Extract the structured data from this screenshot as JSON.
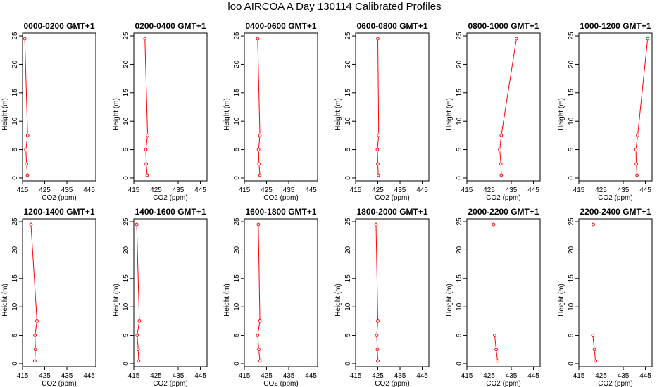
{
  "title": "loo AIRCOA A  Day 130114  Calibrated Profiles",
  "colors": {
    "line": "#ff0000",
    "axis": "#000000",
    "background": "#ffffff"
  },
  "chart_data": [
    {
      "type": "line",
      "title": "0000-0200 GMT+1",
      "xlabel": "CO2 (ppm)",
      "ylabel": "Height (m)",
      "xlim": [
        415,
        448
      ],
      "ylim": [
        -0.5,
        25.5
      ],
      "xticks": [
        415,
        425,
        435,
        445
      ],
      "yticks": [
        0,
        5,
        10,
        15,
        20,
        25
      ],
      "grid": false,
      "points": [
        {
          "x": 417.2,
          "y": 0.5
        },
        {
          "x": 416.8,
          "y": 2.5
        },
        {
          "x": 416.5,
          "y": 5
        },
        {
          "x": 417.3,
          "y": 7.5
        },
        {
          "x": 416.0,
          "y": 24.5
        }
      ],
      "segments": [
        [
          0,
          1
        ],
        [
          1,
          2
        ],
        [
          2,
          3
        ],
        [
          3,
          4
        ]
      ]
    },
    {
      "type": "line",
      "title": "0200-0400 GMT+1",
      "xlabel": "CO2 (ppm)",
      "ylabel": "Height (m)",
      "xlim": [
        415,
        448
      ],
      "ylim": [
        -0.5,
        25.5
      ],
      "xticks": [
        415,
        425,
        435,
        445
      ],
      "yticks": [
        0,
        5,
        10,
        15,
        20,
        25
      ],
      "grid": false,
      "points": [
        {
          "x": 421.0,
          "y": 0.5
        },
        {
          "x": 420.6,
          "y": 2.5
        },
        {
          "x": 420.4,
          "y": 5
        },
        {
          "x": 421.2,
          "y": 7.5
        },
        {
          "x": 420.0,
          "y": 24.5
        }
      ],
      "segments": [
        [
          0,
          1
        ],
        [
          1,
          2
        ],
        [
          2,
          3
        ],
        [
          3,
          4
        ]
      ]
    },
    {
      "type": "line",
      "title": "0400-0600 GMT+1",
      "xlabel": "CO2 (ppm)",
      "ylabel": "Height (m)",
      "xlim": [
        415,
        448
      ],
      "ylim": [
        -0.5,
        25.5
      ],
      "xticks": [
        415,
        425,
        435,
        445
      ],
      "yticks": [
        0,
        5,
        10,
        15,
        20,
        25
      ],
      "grid": false,
      "points": [
        {
          "x": 422.0,
          "y": 0.5
        },
        {
          "x": 421.6,
          "y": 2.5
        },
        {
          "x": 421.4,
          "y": 5
        },
        {
          "x": 422.0,
          "y": 7.5
        },
        {
          "x": 421.0,
          "y": 24.5
        }
      ],
      "segments": [
        [
          0,
          1
        ],
        [
          1,
          2
        ],
        [
          2,
          3
        ],
        [
          3,
          4
        ]
      ]
    },
    {
      "type": "line",
      "title": "0600-0800 GMT+1",
      "xlabel": "CO2 (ppm)",
      "ylabel": "Height (m)",
      "xlim": [
        415,
        448
      ],
      "ylim": [
        -0.5,
        25.5
      ],
      "xticks": [
        415,
        425,
        435,
        445
      ],
      "yticks": [
        0,
        5,
        10,
        15,
        20,
        25
      ],
      "grid": false,
      "points": [
        {
          "x": 425.2,
          "y": 0.5
        },
        {
          "x": 425.0,
          "y": 2.5
        },
        {
          "x": 424.8,
          "y": 5
        },
        {
          "x": 425.4,
          "y": 7.5
        },
        {
          "x": 425.0,
          "y": 24.5
        }
      ],
      "segments": [
        [
          0,
          1
        ],
        [
          1,
          2
        ],
        [
          2,
          3
        ],
        [
          3,
          4
        ]
      ]
    },
    {
      "type": "line",
      "title": "0800-1000 GMT+1",
      "xlabel": "CO2 (ppm)",
      "ylabel": "Height (m)",
      "xlim": [
        415,
        448
      ],
      "ylim": [
        -0.5,
        25.5
      ],
      "xticks": [
        415,
        425,
        435,
        445
      ],
      "yticks": [
        0,
        5,
        10,
        15,
        20,
        25
      ],
      "grid": false,
      "points": [
        {
          "x": 430.5,
          "y": 0.5
        },
        {
          "x": 430.3,
          "y": 2.5
        },
        {
          "x": 429.8,
          "y": 5
        },
        {
          "x": 430.5,
          "y": 7.5
        },
        {
          "x": 437.3,
          "y": 24.5
        }
      ],
      "segments": [
        [
          0,
          1
        ],
        [
          1,
          2
        ],
        [
          2,
          3
        ],
        [
          3,
          4
        ]
      ]
    },
    {
      "type": "line",
      "title": "1000-1200 GMT+1",
      "xlabel": "CO2 (ppm)",
      "ylabel": "Height (m)",
      "xlim": [
        415,
        448
      ],
      "ylim": [
        -0.5,
        25.5
      ],
      "xticks": [
        415,
        425,
        435,
        445
      ],
      "yticks": [
        0,
        5,
        10,
        15,
        20,
        25
      ],
      "grid": false,
      "points": [
        {
          "x": 441.2,
          "y": 0.5
        },
        {
          "x": 440.9,
          "y": 2.5
        },
        {
          "x": 440.7,
          "y": 5
        },
        {
          "x": 441.5,
          "y": 7.5
        },
        {
          "x": 446.0,
          "y": 24.5
        }
      ],
      "segments": [
        [
          0,
          1
        ],
        [
          1,
          2
        ],
        [
          2,
          3
        ],
        [
          3,
          4
        ]
      ]
    },
    {
      "type": "line",
      "title": "1200-1400 GMT+1",
      "xlabel": "CO2 (ppm)",
      "ylabel": "Height (m)",
      "xlim": [
        415,
        448
      ],
      "ylim": [
        -0.5,
        25.5
      ],
      "xticks": [
        415,
        425,
        435,
        445
      ],
      "yticks": [
        0,
        5,
        10,
        15,
        20,
        25
      ],
      "grid": false,
      "points": [
        {
          "x": 420.5,
          "y": 0.5
        },
        {
          "x": 420.8,
          "y": 2.5
        },
        {
          "x": 420.6,
          "y": 5
        },
        {
          "x": 421.5,
          "y": 7.5
        },
        {
          "x": 418.8,
          "y": 24.5
        }
      ],
      "segments": [
        [
          0,
          1
        ],
        [
          1,
          2
        ],
        [
          2,
          3
        ],
        [
          3,
          4
        ]
      ]
    },
    {
      "type": "line",
      "title": "1400-1600 GMT+1",
      "xlabel": "CO2 (ppm)",
      "ylabel": "Height (m)",
      "xlim": [
        415,
        448
      ],
      "ylim": [
        -0.5,
        25.5
      ],
      "xticks": [
        415,
        425,
        435,
        445
      ],
      "yticks": [
        0,
        5,
        10,
        15,
        20,
        25
      ],
      "grid": false,
      "points": [
        {
          "x": 417.2,
          "y": 0.5
        },
        {
          "x": 417.0,
          "y": 2.5
        },
        {
          "x": 416.5,
          "y": 5
        },
        {
          "x": 417.5,
          "y": 7.5
        },
        {
          "x": 416.3,
          "y": 24.5
        }
      ],
      "segments": [
        [
          0,
          1
        ],
        [
          1,
          2
        ],
        [
          2,
          3
        ],
        [
          3,
          4
        ]
      ]
    },
    {
      "type": "line",
      "title": "1600-1800 GMT+1",
      "xlabel": "CO2 (ppm)",
      "ylabel": "Height (m)",
      "xlim": [
        415,
        448
      ],
      "ylim": [
        -0.5,
        25.5
      ],
      "xticks": [
        415,
        425,
        435,
        445
      ],
      "yticks": [
        0,
        5,
        10,
        15,
        20,
        25
      ],
      "grid": false,
      "points": [
        {
          "x": 422.0,
          "y": 0.5
        },
        {
          "x": 421.5,
          "y": 2.5
        },
        {
          "x": 421.0,
          "y": 5
        },
        {
          "x": 422.0,
          "y": 7.5
        },
        {
          "x": 421.3,
          "y": 24.5
        }
      ],
      "segments": [
        [
          0,
          1
        ],
        [
          1,
          2
        ],
        [
          2,
          3
        ],
        [
          3,
          4
        ]
      ]
    },
    {
      "type": "line",
      "title": "1800-2000 GMT+1",
      "xlabel": "CO2 (ppm)",
      "ylabel": "Height (m)",
      "xlim": [
        415,
        448
      ],
      "ylim": [
        -0.5,
        25.5
      ],
      "xticks": [
        415,
        425,
        435,
        445
      ],
      "yticks": [
        0,
        5,
        10,
        15,
        20,
        25
      ],
      "grid": false,
      "points": [
        {
          "x": 425.0,
          "y": 0.5
        },
        {
          "x": 424.8,
          "y": 2.5
        },
        {
          "x": 424.5,
          "y": 5
        },
        {
          "x": 425.0,
          "y": 7.5
        },
        {
          "x": 424.2,
          "y": 24.5
        }
      ],
      "segments": [
        [
          0,
          1
        ],
        [
          1,
          2
        ],
        [
          2,
          3
        ],
        [
          3,
          4
        ]
      ]
    },
    {
      "type": "line",
      "title": "2000-2200 GMT+1",
      "xlabel": "CO2 (ppm)",
      "ylabel": "Height (m)",
      "xlim": [
        415,
        448
      ],
      "ylim": [
        -0.5,
        25.5
      ],
      "xticks": [
        415,
        425,
        435,
        445
      ],
      "yticks": [
        0,
        5,
        10,
        15,
        20,
        25
      ],
      "grid": false,
      "points": [
        {
          "x": 428.8,
          "y": 0.5
        },
        {
          "x": 428.2,
          "y": 2.5
        },
        {
          "x": 427.5,
          "y": 5
        },
        {
          "x": 427.0,
          "y": 24.5
        }
      ],
      "segments": [
        [
          0,
          1
        ],
        [
          1,
          2
        ]
      ]
    },
    {
      "type": "line",
      "title": "2200-2400 GMT+1",
      "xlabel": "CO2 (ppm)",
      "ylabel": "Height (m)",
      "xlim": [
        415,
        448
      ],
      "ylim": [
        -0.5,
        25.5
      ],
      "xticks": [
        415,
        425,
        435,
        445
      ],
      "yticks": [
        0,
        5,
        10,
        15,
        20,
        25
      ],
      "grid": false,
      "points": [
        {
          "x": 422.5,
          "y": 0.5
        },
        {
          "x": 422.0,
          "y": 2.5
        },
        {
          "x": 421.3,
          "y": 5
        },
        {
          "x": 421.5,
          "y": 24.5
        }
      ],
      "segments": [
        [
          0,
          1
        ],
        [
          1,
          2
        ]
      ]
    }
  ]
}
